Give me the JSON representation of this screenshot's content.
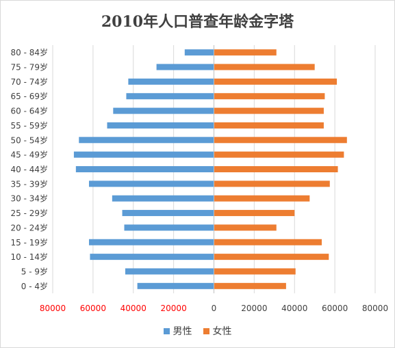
{
  "chart_data": {
    "type": "bar",
    "title": "2010年人口普查年龄金字塔",
    "xlabel": "",
    "ylabel": "",
    "xlim": [
      -80000,
      80000
    ],
    "x_ticks": [
      -80000,
      -60000,
      -40000,
      -20000,
      0,
      20000,
      40000,
      60000,
      80000
    ],
    "x_tick_labels": [
      "80000",
      "60000",
      "40000",
      "20000",
      "0",
      "20000",
      "40000",
      "60000",
      "80000"
    ],
    "categories": [
      "0 - 4岁",
      "5 - 9岁",
      "10 - 14岁",
      "15 - 19岁",
      "20 - 24岁",
      "25 - 29岁",
      "30 - 34岁",
      "35 - 39岁",
      "40 - 44岁",
      "45 - 49岁",
      "50 - 54岁",
      "55 - 59岁",
      "60 - 64岁",
      "65 - 69岁",
      "70 - 74岁",
      "75 - 79岁",
      "80 - 84岁"
    ],
    "series": [
      {
        "name": "男性",
        "color": "#5b9bd5",
        "values": [
          -38000,
          -44000,
          -61500,
          -62000,
          -44500,
          -45500,
          -50500,
          -62000,
          -68500,
          -69500,
          -67000,
          -53000,
          -50000,
          -43500,
          -42500,
          -28500,
          -14500
        ]
      },
      {
        "name": "女性",
        "color": "#ed7d31",
        "values": [
          35800,
          40500,
          57000,
          53500,
          31000,
          40000,
          47500,
          57500,
          61500,
          64500,
          66000,
          54500,
          54500,
          55000,
          61000,
          50000,
          31000
        ]
      }
    ],
    "legend_position": "bottom",
    "grid": true,
    "negative_tick_color": "#ff0000"
  }
}
